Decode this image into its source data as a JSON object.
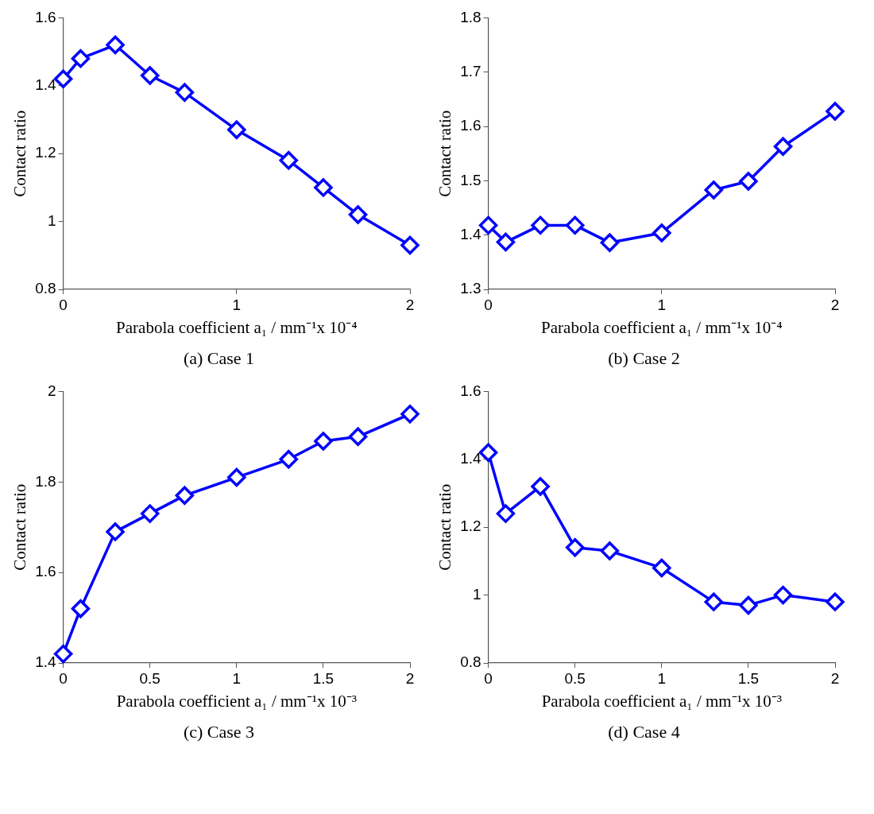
{
  "chart_data": [
    {
      "type": "line",
      "title": "(a) Case 1",
      "xlabel": "Parabola coefficient a₁ / mm⁻¹x 10⁻⁴",
      "ylabel": "Contact ratio",
      "x": [
        0,
        0.1,
        0.3,
        0.5,
        0.7,
        1,
        1.3,
        1.5,
        1.7,
        2
      ],
      "values": [
        1.42,
        1.48,
        1.52,
        1.43,
        1.38,
        1.27,
        1.18,
        1.1,
        1.02,
        0.93
      ],
      "color": "#0000ff",
      "xlim": [
        0,
        2
      ],
      "xticks": [
        0,
        1,
        2
      ],
      "ylim": [
        0.8,
        1.6
      ],
      "yticks": [
        0.8,
        1,
        1.2,
        1.4,
        1.6
      ],
      "marker": "diamond",
      "line_style": "solid"
    },
    {
      "type": "line",
      "title": "(b) Case 2",
      "xlabel": "Parabola coefficient a₁ / mm⁻¹x 10⁻⁴",
      "ylabel": "Contact ratio",
      "x": [
        0,
        0.1,
        0.3,
        0.5,
        0.7,
        1,
        1.3,
        1.5,
        1.7,
        2
      ],
      "values": [
        1.418,
        1.387,
        1.418,
        1.418,
        1.386,
        1.404,
        1.483,
        1.499,
        1.563,
        1.628
      ],
      "color": "#0000ff",
      "xlim": [
        0,
        2
      ],
      "xticks": [
        0,
        1,
        2
      ],
      "ylim": [
        1.3,
        1.8
      ],
      "yticks": [
        1.3,
        1.4,
        1.5,
        1.6,
        1.7,
        1.8
      ],
      "marker": "diamond",
      "line_style": "solid"
    },
    {
      "type": "line",
      "title": "(c) Case 3",
      "xlabel": "Parabola coefficient a₁ / mm⁻¹x 10⁻³",
      "ylabel": "Contact ratio",
      "x": [
        0,
        0.1,
        0.3,
        0.5,
        0.7,
        1,
        1.3,
        1.5,
        1.7,
        2
      ],
      "values": [
        1.42,
        1.52,
        1.69,
        1.73,
        1.77,
        1.81,
        1.85,
        1.89,
        1.9,
        1.95
      ],
      "color": "#0000ff",
      "xlim": [
        0,
        2
      ],
      "xticks": [
        0,
        0.5,
        1,
        1.5,
        2
      ],
      "ylim": [
        1.4,
        2
      ],
      "yticks": [
        1.4,
        1.6,
        1.8,
        2
      ],
      "marker": "diamond",
      "line_style": "solid"
    },
    {
      "type": "line",
      "title": "(d) Case 4",
      "xlabel": "Parabola coefficient a₁ / mm⁻¹x 10⁻³",
      "ylabel": "Contact ratio",
      "x": [
        0,
        0.1,
        0.3,
        0.5,
        0.7,
        1,
        1.3,
        1.5,
        1.7,
        2
      ],
      "values": [
        1.42,
        1.24,
        1.32,
        1.14,
        1.13,
        1.08,
        0.98,
        0.97,
        1.0,
        0.98
      ],
      "color": "#0000ff",
      "xlim": [
        0,
        2
      ],
      "xticks": [
        0,
        0.5,
        1,
        1.5,
        2
      ],
      "ylim": [
        0.8,
        1.6
      ],
      "yticks": [
        0.8,
        1,
        1.2,
        1.4,
        1.6
      ],
      "marker": "diamond",
      "line_style": "solid"
    }
  ]
}
